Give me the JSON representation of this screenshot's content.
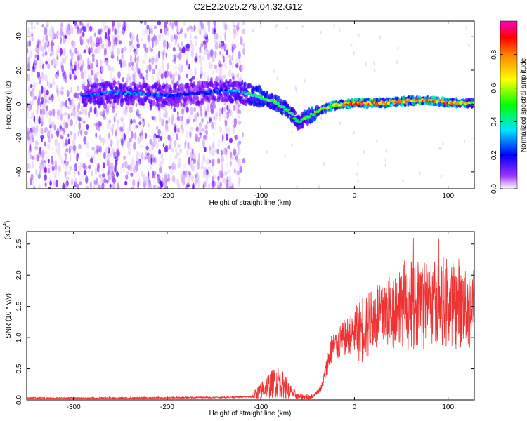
{
  "title": "C2E2.2025.279.04.32.G12",
  "chart_data": [
    {
      "type": "heatmap",
      "name": "spectrogram",
      "xlabel": "Height of straight line (km)",
      "ylabel": "Frequency (Hz)",
      "xlim": [
        -350,
        128
      ],
      "ylim": [
        -50,
        49
      ],
      "xticks": [
        -300,
        -200,
        -100,
        0,
        100
      ],
      "yticks": [
        -40,
        -20,
        0,
        20,
        40
      ],
      "colorbar": {
        "label": "Normalized spectral amplitude",
        "range": [
          0,
          1
        ],
        "ticks": [
          0.0,
          0.2,
          0.4,
          0.6,
          0.8
        ],
        "colormap": [
          "#ffffff",
          "#7f00ff",
          "#0000ff",
          "#00e5ff",
          "#00ff00",
          "#ffff00",
          "#ff8000",
          "#ff0000",
          "#ff00c0"
        ]
      },
      "noise_region": {
        "x": [
          -350,
          -118
        ],
        "y": [
          -50,
          49
        ]
      },
      "ridge": [
        {
          "x": -290,
          "y": 5,
          "amp": 0.3
        },
        {
          "x": -260,
          "y": 7,
          "amp": 0.35
        },
        {
          "x": -230,
          "y": 6,
          "amp": 0.33
        },
        {
          "x": -200,
          "y": 5,
          "amp": 0.3
        },
        {
          "x": -170,
          "y": 6,
          "amp": 0.25
        },
        {
          "x": -140,
          "y": 8,
          "amp": 0.32
        },
        {
          "x": -120,
          "y": 7,
          "amp": 0.4
        },
        {
          "x": -100,
          "y": 4,
          "amp": 0.5
        },
        {
          "x": -85,
          "y": 1,
          "amp": 0.55
        },
        {
          "x": -70,
          "y": -4,
          "amp": 0.5
        },
        {
          "x": -60,
          "y": -11,
          "amp": 0.45
        },
        {
          "x": -45,
          "y": -6,
          "amp": 0.6
        },
        {
          "x": -30,
          "y": -2,
          "amp": 0.65
        },
        {
          "x": -15,
          "y": 0,
          "amp": 0.75
        },
        {
          "x": 0,
          "y": 0.5,
          "amp": 0.85
        },
        {
          "x": 20,
          "y": 0.5,
          "amp": 0.92
        },
        {
          "x": 40,
          "y": 1,
          "amp": 0.8
        },
        {
          "x": 60,
          "y": 2,
          "amp": 0.75
        },
        {
          "x": 80,
          "y": 2,
          "amp": 0.85
        },
        {
          "x": 100,
          "y": 1,
          "amp": 0.8
        },
        {
          "x": 115,
          "y": 0.5,
          "amp": 0.7
        },
        {
          "x": 128,
          "y": 0.5,
          "amp": 0.6
        }
      ]
    },
    {
      "type": "line",
      "name": "snr",
      "xlabel": "Height of straight line (km)",
      "ylabel": "SNR (10 * v/v)",
      "y_multiplier_label": "(x10",
      "y_multiplier_exp": "4",
      "xlim": [
        -350,
        128
      ],
      "ylim": [
        0,
        2.7
      ],
      "xticks": [
        -300,
        -200,
        -100,
        0,
        100
      ],
      "yticks": [
        0.0,
        0.5,
        1.0,
        1.5,
        2.0,
        2.5
      ],
      "color": "#ee3333",
      "envelope": [
        {
          "x": -350,
          "y": 0.03
        },
        {
          "x": -250,
          "y": 0.03
        },
        {
          "x": -150,
          "y": 0.04
        },
        {
          "x": -110,
          "y": 0.05
        },
        {
          "x": -100,
          "y": 0.15
        },
        {
          "x": -90,
          "y": 0.25
        },
        {
          "x": -80,
          "y": 0.3
        },
        {
          "x": -70,
          "y": 0.15
        },
        {
          "x": -60,
          "y": 0.05
        },
        {
          "x": -45,
          "y": 0.05
        },
        {
          "x": -35,
          "y": 0.2
        },
        {
          "x": -25,
          "y": 0.8
        },
        {
          "x": -10,
          "y": 1.0
        },
        {
          "x": 10,
          "y": 1.2
        },
        {
          "x": 30,
          "y": 1.4
        },
        {
          "x": 50,
          "y": 1.5
        },
        {
          "x": 70,
          "y": 1.6
        },
        {
          "x": 90,
          "y": 1.55
        },
        {
          "x": 110,
          "y": 1.55
        },
        {
          "x": 128,
          "y": 1.5
        }
      ]
    }
  ]
}
